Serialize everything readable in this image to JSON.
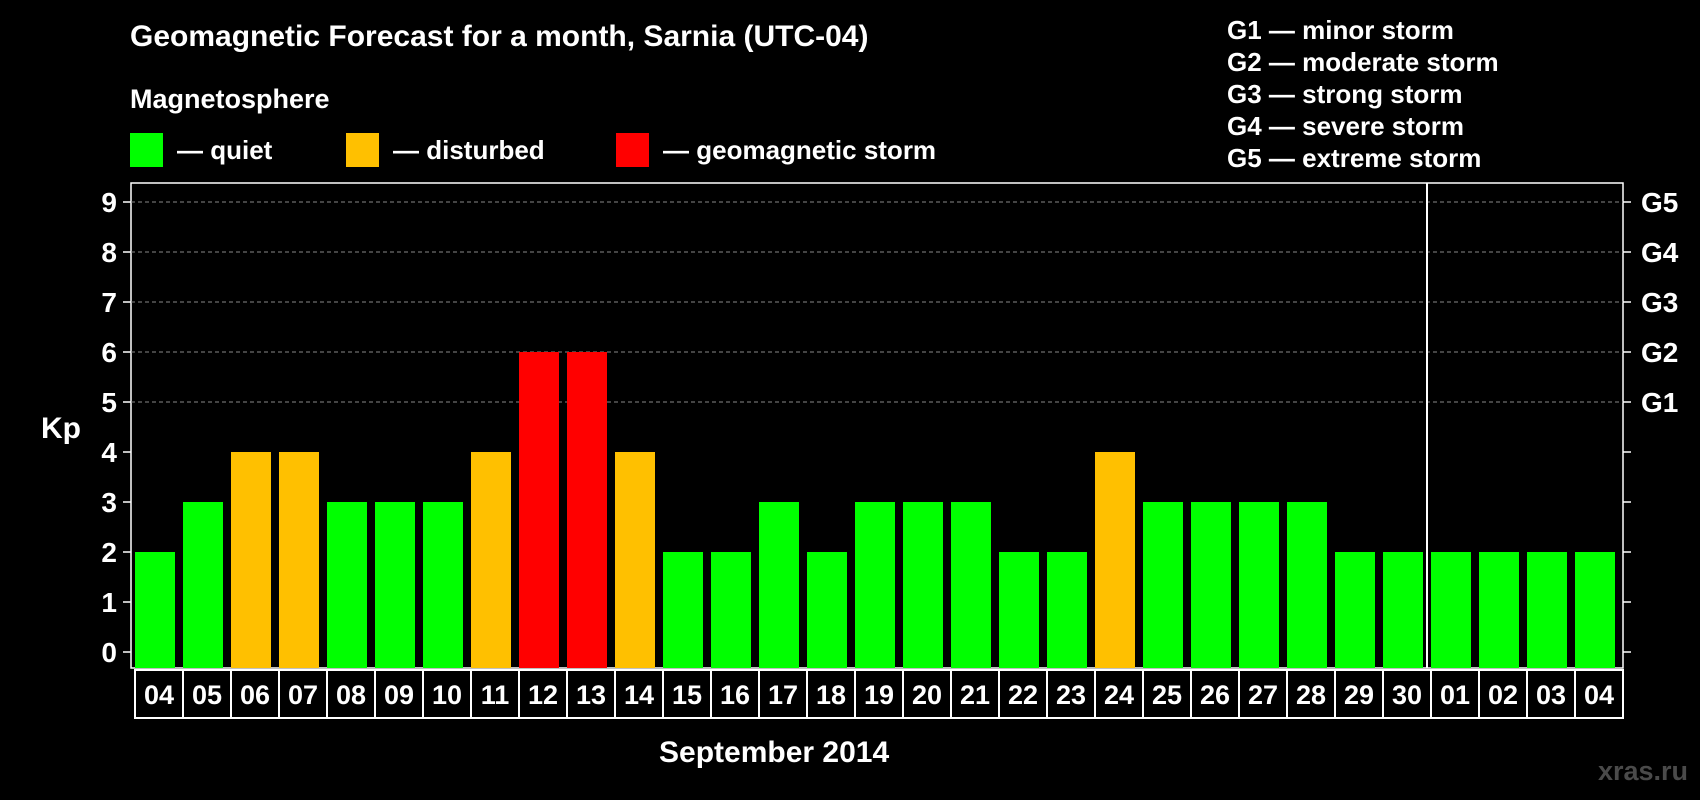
{
  "title": "Geomagnetic Forecast for a month, Sarnia (UTC-04)",
  "legend": {
    "heading": "Magnetosphere",
    "items": [
      {
        "label": "— quiet",
        "color": "#00ff00"
      },
      {
        "label": "— disturbed",
        "color": "#ffc000"
      },
      {
        "label": "— geomagnetic storm",
        "color": "#ff0000"
      }
    ]
  },
  "g_legend": [
    "G1 — minor storm",
    "G2 — moderate storm",
    "G3 — strong storm",
    "G4 — severe storm",
    "G5 — extreme storm"
  ],
  "watermark": "xras.ru",
  "chart_data": {
    "type": "bar",
    "title": "Geomagnetic Forecast for a month, Sarnia (UTC-04)",
    "xlabel": "September 2014",
    "ylabel": "Kp",
    "ylim": [
      0,
      9
    ],
    "yticks": [
      "0",
      "1",
      "2",
      "3",
      "4",
      "5",
      "6",
      "7",
      "8",
      "9"
    ],
    "right_axis_labels": [
      {
        "kp": 5,
        "label": "G1"
      },
      {
        "kp": 6,
        "label": "G2"
      },
      {
        "kp": 7,
        "label": "G3"
      },
      {
        "kp": 8,
        "label": "G4"
      },
      {
        "kp": 9,
        "label": "G5"
      }
    ],
    "month_divider_after_index": 26,
    "categories": [
      "04",
      "05",
      "06",
      "07",
      "08",
      "09",
      "10",
      "11",
      "12",
      "13",
      "14",
      "15",
      "16",
      "17",
      "18",
      "19",
      "20",
      "21",
      "22",
      "23",
      "24",
      "25",
      "26",
      "27",
      "28",
      "29",
      "30",
      "01",
      "02",
      "03",
      "04"
    ],
    "values": [
      2,
      3,
      4,
      4,
      3,
      3,
      3,
      4,
      6,
      6,
      4,
      2,
      2,
      3,
      2,
      3,
      3,
      3,
      2,
      2,
      4,
      3,
      3,
      3,
      3,
      2,
      2,
      2,
      2,
      2,
      2
    ],
    "status": [
      "quiet",
      "quiet",
      "disturbed",
      "disturbed",
      "quiet",
      "quiet",
      "quiet",
      "disturbed",
      "storm",
      "storm",
      "disturbed",
      "quiet",
      "quiet",
      "quiet",
      "quiet",
      "quiet",
      "quiet",
      "quiet",
      "quiet",
      "quiet",
      "disturbed",
      "quiet",
      "quiet",
      "quiet",
      "quiet",
      "quiet",
      "quiet",
      "quiet",
      "quiet",
      "quiet",
      "quiet"
    ],
    "status_colors": {
      "quiet": "#00ff00",
      "disturbed": "#ffc000",
      "storm": "#ff0000"
    },
    "grid": "dashed at Kp 5-9"
  }
}
